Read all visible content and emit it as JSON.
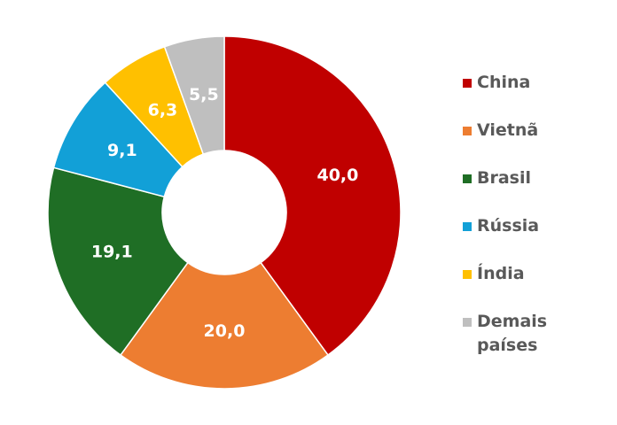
{
  "chart_data": {
    "type": "donut",
    "categories": [
      "China",
      "Vietnã",
      "Brasil",
      "Rússia",
      "Índia",
      "Demais países"
    ],
    "values": [
      40.0,
      20.0,
      19.1,
      9.1,
      6.3,
      5.5
    ],
    "value_labels": [
      "40,0",
      "20,0",
      "19,1",
      "9,1",
      "6,3",
      "5,5"
    ],
    "colors": [
      "#c00000",
      "#ed7d31",
      "#1f6e25",
      "#12a0d7",
      "#ffc000",
      "#bfbfbf"
    ],
    "legend": "right"
  }
}
